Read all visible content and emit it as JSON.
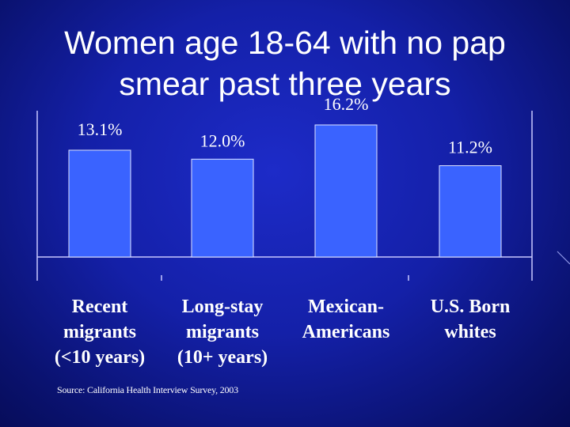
{
  "title_lines": [
    "Women age 18-64 with no pap",
    "smear past three years"
  ],
  "source": "Source: California Health Interview Survey, 2003",
  "colors": {
    "bar": "#3a63ff",
    "axis": "#c8c8ff",
    "text": "#ffffff"
  },
  "chart_data": {
    "type": "bar",
    "categories": [
      [
        "Recent",
        "migrants",
        "(<10 years)"
      ],
      [
        "Long-stay",
        "migrants",
        "(10+ years)"
      ],
      [
        "Mexican-",
        "Americans"
      ],
      [
        "U.S. Born",
        "whites"
      ]
    ],
    "values": [
      13.1,
      12.0,
      16.2,
      11.2
    ],
    "data_labels": [
      "13.1%",
      "12.0%",
      "16.2%",
      "11.2%"
    ],
    "ylim": [
      0,
      16.2
    ],
    "title": "Women age 18-64 with no pap smear past three years",
    "xlabel": "",
    "ylabel": "",
    "grid": false
  }
}
